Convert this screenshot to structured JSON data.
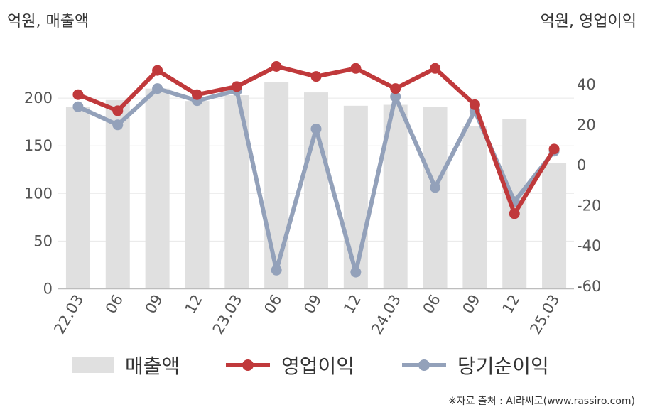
{
  "chart_data": {
    "type": "bar+line",
    "left_axis_label": "억원, 매출액",
    "right_axis_label": "억원, 영업이익",
    "categories": [
      "22.03",
      "06",
      "09",
      "12",
      "23.03",
      "06",
      "09",
      "12",
      "24.03",
      "06",
      "09",
      "12",
      "25.03"
    ],
    "left_axis": {
      "ylim": [
        0,
        250
      ],
      "ticks": [
        0,
        50,
        100,
        150,
        200
      ]
    },
    "right_axis": {
      "ylim": [
        -60,
        50
      ],
      "ticks": [
        -60,
        -40,
        -20,
        0,
        20,
        40
      ]
    },
    "bar_series": {
      "name": "매출액",
      "axis": "left",
      "color": "#e0e0e0",
      "values": [
        191,
        198,
        210,
        197,
        203,
        217,
        206,
        192,
        193,
        191,
        171,
        178,
        132
      ]
    },
    "line_series": [
      {
        "name": "영업이익",
        "axis": "right",
        "color": "#c0393b",
        "values": [
          35,
          27,
          47,
          35,
          39,
          49,
          44,
          48,
          38,
          48,
          30,
          -24,
          8
        ]
      },
      {
        "name": "당기순이익",
        "axis": "right",
        "color": "#93a1ba",
        "values": [
          29,
          20,
          38,
          32,
          37,
          -52,
          18,
          -53,
          34,
          -11,
          27,
          -18,
          7
        ]
      }
    ],
    "grid": "horizontal",
    "legend_position": "bottom"
  },
  "source": "※자료 출처 : AI라씨로(www.rassiro.com)"
}
